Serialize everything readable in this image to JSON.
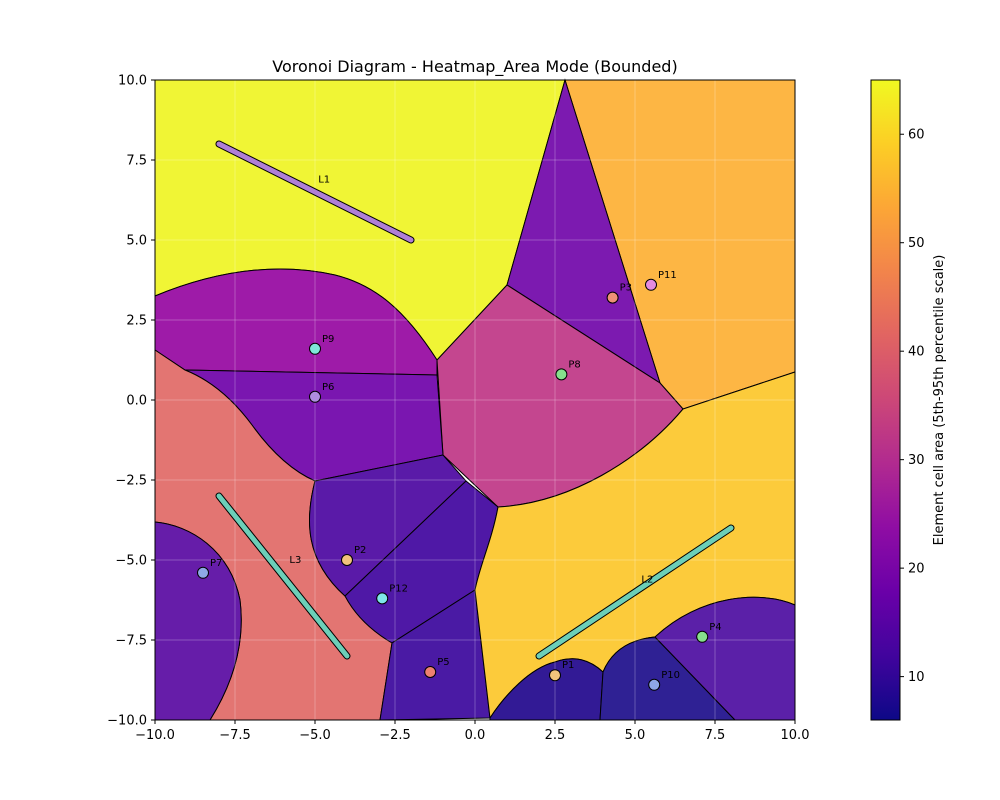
{
  "chart_data": {
    "type": "heatmap",
    "title": "Voronoi Diagram - Heatmap_Area Mode (Bounded)",
    "xlabel": "",
    "ylabel": "",
    "xlim": [
      -10,
      10
    ],
    "ylim": [
      -10,
      10
    ],
    "x_ticks": [
      "−10.0",
      "−7.5",
      "−5.0",
      "−2.5",
      "0.0",
      "2.5",
      "5.0",
      "7.5",
      "10.0"
    ],
    "x_tick_values": [
      -10,
      -7.5,
      -5,
      -2.5,
      0,
      2.5,
      5,
      7.5,
      10
    ],
    "y_ticks": [
      "10.0",
      "7.5",
      "5.0",
      "2.5",
      "0.0",
      "−2.5",
      "−5.0",
      "−7.5",
      "−10.0"
    ],
    "y_tick_values": [
      10,
      7.5,
      5,
      2.5,
      0,
      -2.5,
      -5,
      -7.5,
      -10
    ],
    "grid": true,
    "colorbar": {
      "label": "Element cell area (5th-95th percentile scale)",
      "range": [
        6,
        65
      ],
      "ticks": [
        "10",
        "20",
        "30",
        "40",
        "50",
        "60"
      ],
      "tick_values": [
        10,
        20,
        30,
        40,
        50,
        60
      ],
      "colormap": "plasma"
    },
    "points": [
      {
        "label": "P1",
        "x": 2.5,
        "y": -8.6,
        "color": "#f2c27c"
      },
      {
        "label": "P2",
        "x": -4.0,
        "y": -5.0,
        "color": "#f2c27c"
      },
      {
        "label": "P3",
        "x": 4.3,
        "y": 3.2,
        "color": "#ee9177"
      },
      {
        "label": "P4",
        "x": 7.1,
        "y": -7.4,
        "color": "#86e08c"
      },
      {
        "label": "P5",
        "x": -1.4,
        "y": -8.5,
        "color": "#ee8170"
      },
      {
        "label": "P6",
        "x": -5.0,
        "y": 0.1,
        "color": "#b08de0"
      },
      {
        "label": "P7",
        "x": -8.5,
        "y": -5.4,
        "color": "#8ea7e6"
      },
      {
        "label": "P8",
        "x": 2.7,
        "y": 0.8,
        "color": "#86e08c"
      },
      {
        "label": "P9",
        "x": -5.0,
        "y": 1.6,
        "color": "#7fe6d9"
      },
      {
        "label": "P10",
        "x": 5.6,
        "y": -8.9,
        "color": "#8ea7e6"
      },
      {
        "label": "P11",
        "x": 5.5,
        "y": 3.6,
        "color": "#e48be0"
      },
      {
        "label": "P12",
        "x": -2.9,
        "y": -6.2,
        "color": "#7fe6ea"
      }
    ],
    "lines": [
      {
        "label": "L1",
        "x1": -8.0,
        "y1": 8.0,
        "x2": -2.0,
        "y2": 5.0,
        "color": "#b07fd6",
        "label_x": -4.9,
        "label_y": 6.8
      },
      {
        "label": "L2",
        "x1": 2.0,
        "y1": -8.0,
        "x2": 8.0,
        "y2": -4.0,
        "color": "#6ccfb8",
        "label_x": 5.2,
        "label_y": -5.7
      },
      {
        "label": "L3",
        "x1": -8.0,
        "y1": -3.0,
        "x2": -4.0,
        "y2": -8.0,
        "color": "#6ccfb8",
        "label_x": -5.8,
        "label_y": -5.1
      }
    ],
    "cells": [
      {
        "owner": "L1",
        "value": 65,
        "color": "#f0f535"
      },
      {
        "owner": "P11",
        "value": 56,
        "color": "#fdb644"
      },
      {
        "owner": "P3",
        "value": 17,
        "color": "#7c1ab0"
      },
      {
        "owner": "P8",
        "value": 33,
        "color": "#c4468f"
      },
      {
        "owner": "P9",
        "value": 22,
        "color": "#9e1ba8"
      },
      {
        "owner": "P6",
        "value": 16,
        "color": "#7a16b0"
      },
      {
        "owner": "L3",
        "value": 40,
        "color": "#e37572"
      },
      {
        "owner": "P2",
        "value": 11,
        "color": "#5a1aa8"
      },
      {
        "owner": "P12",
        "value": 11,
        "color": "#4f18a6"
      },
      {
        "owner": "P5",
        "value": 10,
        "color": "#4a1aa4"
      },
      {
        "owner": "P7",
        "value": 14,
        "color": "#661da9"
      },
      {
        "owner": "L2",
        "value": 59,
        "color": "#fccb3b"
      },
      {
        "owner": "P1",
        "value": 8,
        "color": "#321a95"
      },
      {
        "owner": "P10",
        "value": 9,
        "color": "#2f2194"
      },
      {
        "owner": "P4",
        "value": 12,
        "color": "#5b20a8"
      }
    ]
  }
}
